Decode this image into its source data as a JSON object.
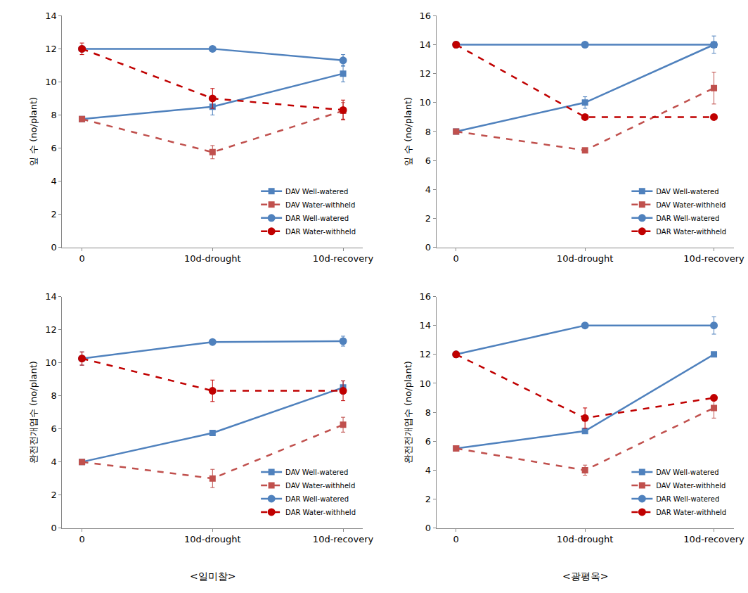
{
  "chart_data": [
    {
      "type": "line",
      "y_label": "잎 수 (no/plant)",
      "categories": [
        "0",
        "10d-drought",
        "10d-recovery"
      ],
      "ylim": [
        0,
        14
      ],
      "yticks": [
        0,
        2,
        4,
        6,
        8,
        10,
        12,
        14
      ],
      "grid": false,
      "legend": "lower right",
      "series": [
        {
          "name": "DAV Well-watered",
          "color": "#4f81bd",
          "line_style": "solid",
          "marker": "square",
          "values": [
            7.75,
            8.5,
            10.5
          ],
          "error": [
            0.1,
            0.5,
            0.5
          ]
        },
        {
          "name": "DAV Water-withheld",
          "color": "#c0504d",
          "line_style": "dash",
          "marker": "square",
          "values": [
            7.75,
            5.75,
            8.25
          ],
          "error": [
            0.1,
            0.4,
            0.5
          ]
        },
        {
          "name": "DAR Well-watered",
          "color": "#4f81bd",
          "line_style": "solid",
          "marker": "circle",
          "values": [
            12,
            12,
            11.3
          ],
          "error": [
            0,
            0,
            0.35
          ]
        },
        {
          "name": "DAR Water-withheld",
          "color": "#c00000",
          "line_style": "dash",
          "marker": "circle",
          "values": [
            12,
            9,
            8.3
          ],
          "error": [
            0.35,
            0.6,
            0.6
          ]
        }
      ]
    },
    {
      "type": "line",
      "y_label": "잎 수 (no/plant)",
      "categories": [
        "0",
        "10d-drought",
        "10d-recovery"
      ],
      "ylim": [
        0,
        16
      ],
      "yticks": [
        0,
        2,
        4,
        6,
        8,
        10,
        12,
        14,
        16
      ],
      "grid": false,
      "legend": "lower right",
      "series": [
        {
          "name": "DAV Well-watered",
          "color": "#4f81bd",
          "line_style": "solid",
          "marker": "square",
          "values": [
            8,
            10,
            14
          ],
          "error": [
            0,
            0.4,
            0.6
          ]
        },
        {
          "name": "DAV Water-withheld",
          "color": "#c0504d",
          "line_style": "dash",
          "marker": "square",
          "values": [
            8,
            6.7,
            11
          ],
          "error": [
            0,
            0,
            1.1
          ]
        },
        {
          "name": "DAR Well-watered",
          "color": "#4f81bd",
          "line_style": "solid",
          "marker": "circle",
          "values": [
            14,
            14,
            14
          ],
          "error": [
            0,
            0,
            0
          ]
        },
        {
          "name": "DAR Water-withheld",
          "color": "#c00000",
          "line_style": "dash",
          "marker": "circle",
          "values": [
            14,
            9,
            9
          ],
          "error": [
            0,
            0,
            0
          ]
        }
      ]
    },
    {
      "type": "line",
      "y_label": "완전전개엽수 (no/plant)",
      "categories": [
        "0",
        "10d-drought",
        "10d-recovery"
      ],
      "ylim": [
        0,
        14
      ],
      "yticks": [
        0,
        2,
        4,
        6,
        8,
        10,
        12,
        14
      ],
      "grid": false,
      "legend": "lower right",
      "annotations": [
        "<일미찰>"
      ],
      "series": [
        {
          "name": "DAV Well-watered",
          "color": "#4f81bd",
          "line_style": "solid",
          "marker": "square",
          "values": [
            4,
            5.75,
            8.5
          ],
          "error": [
            0,
            0,
            0.4
          ]
        },
        {
          "name": "DAV Water-withheld",
          "color": "#c0504d",
          "line_style": "dash",
          "marker": "square",
          "values": [
            4,
            3,
            6.25
          ],
          "error": [
            0,
            0.55,
            0.45
          ]
        },
        {
          "name": "DAR Well-watered",
          "color": "#4f81bd",
          "line_style": "solid",
          "marker": "circle",
          "values": [
            10.25,
            11.25,
            11.3
          ],
          "error": [
            0.4,
            0,
            0.3
          ]
        },
        {
          "name": "DAR Water-withheld",
          "color": "#c00000",
          "line_style": "dash",
          "marker": "circle",
          "values": [
            10.25,
            8.3,
            8.3
          ],
          "error": [
            0.4,
            0.65,
            0.6
          ]
        }
      ]
    },
    {
      "type": "line",
      "y_label": "완전전개엽수 (no/plant)",
      "categories": [
        "0",
        "10d-drought",
        "10d-recovery"
      ],
      "ylim": [
        0,
        16
      ],
      "yticks": [
        0,
        2,
        4,
        6,
        8,
        10,
        12,
        14,
        16
      ],
      "grid": false,
      "legend": "lower right",
      "annotations": [
        "<광평옥>"
      ],
      "series": [
        {
          "name": "DAV Well-watered",
          "color": "#4f81bd",
          "line_style": "solid",
          "marker": "square",
          "values": [
            5.5,
            6.7,
            12
          ],
          "error": [
            0,
            0,
            0
          ]
        },
        {
          "name": "DAV Water-withheld",
          "color": "#c0504d",
          "line_style": "dash",
          "marker": "square",
          "values": [
            5.5,
            4,
            8.3
          ],
          "error": [
            0,
            0.35,
            0.7
          ]
        },
        {
          "name": "DAR Well-watered",
          "color": "#4f81bd",
          "line_style": "solid",
          "marker": "circle",
          "values": [
            12,
            14,
            14
          ],
          "error": [
            0,
            0,
            0.6
          ]
        },
        {
          "name": "DAR Water-withheld",
          "color": "#c00000",
          "line_style": "dash",
          "marker": "circle",
          "values": [
            12,
            7.6,
            9
          ],
          "error": [
            0,
            0.7,
            0
          ]
        }
      ]
    }
  ]
}
